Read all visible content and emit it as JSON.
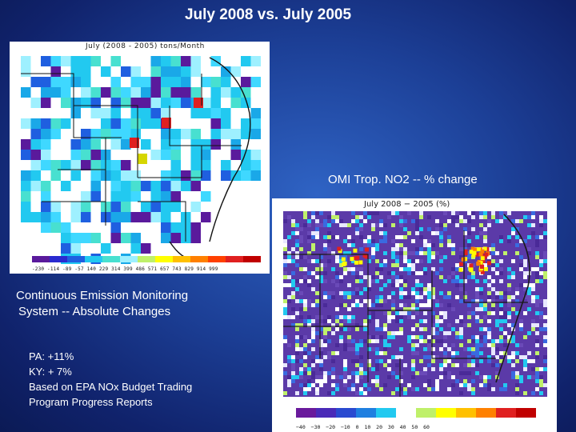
{
  "slide": {
    "title": "July 2008 vs. July 2005",
    "left_map": {
      "caption": "July (2008 - 2005) tons/Month",
      "colorbar_ticks": "-230 -114 -89 -57 140 229 314 399 486 571 657 743 829 914 999"
    },
    "right_map": {
      "label": "OMI Trop. NO2  -- % change",
      "caption": "July 2008 − 2005 (%)",
      "colorbar_ticks": "−40 −30 −20 −10 0 10 20 30 40 50 60"
    },
    "cems_heading": {
      "line1": "Continuous Emission Monitoring",
      "line2": "System -- Absolute Changes"
    },
    "stats": {
      "pa": "PA:  +11%",
      "ky": "KY:  + 7%",
      "source_line1": "Based on EPA NOx Budget Trading",
      "source_line2": "Program Progress Reports"
    },
    "colors": {
      "background": "#1c3f96",
      "text": "#ffffff",
      "map_cyan": "#22c9f0",
      "map_purple": "#5a1a9c",
      "map_red": "#e02020"
    }
  }
}
